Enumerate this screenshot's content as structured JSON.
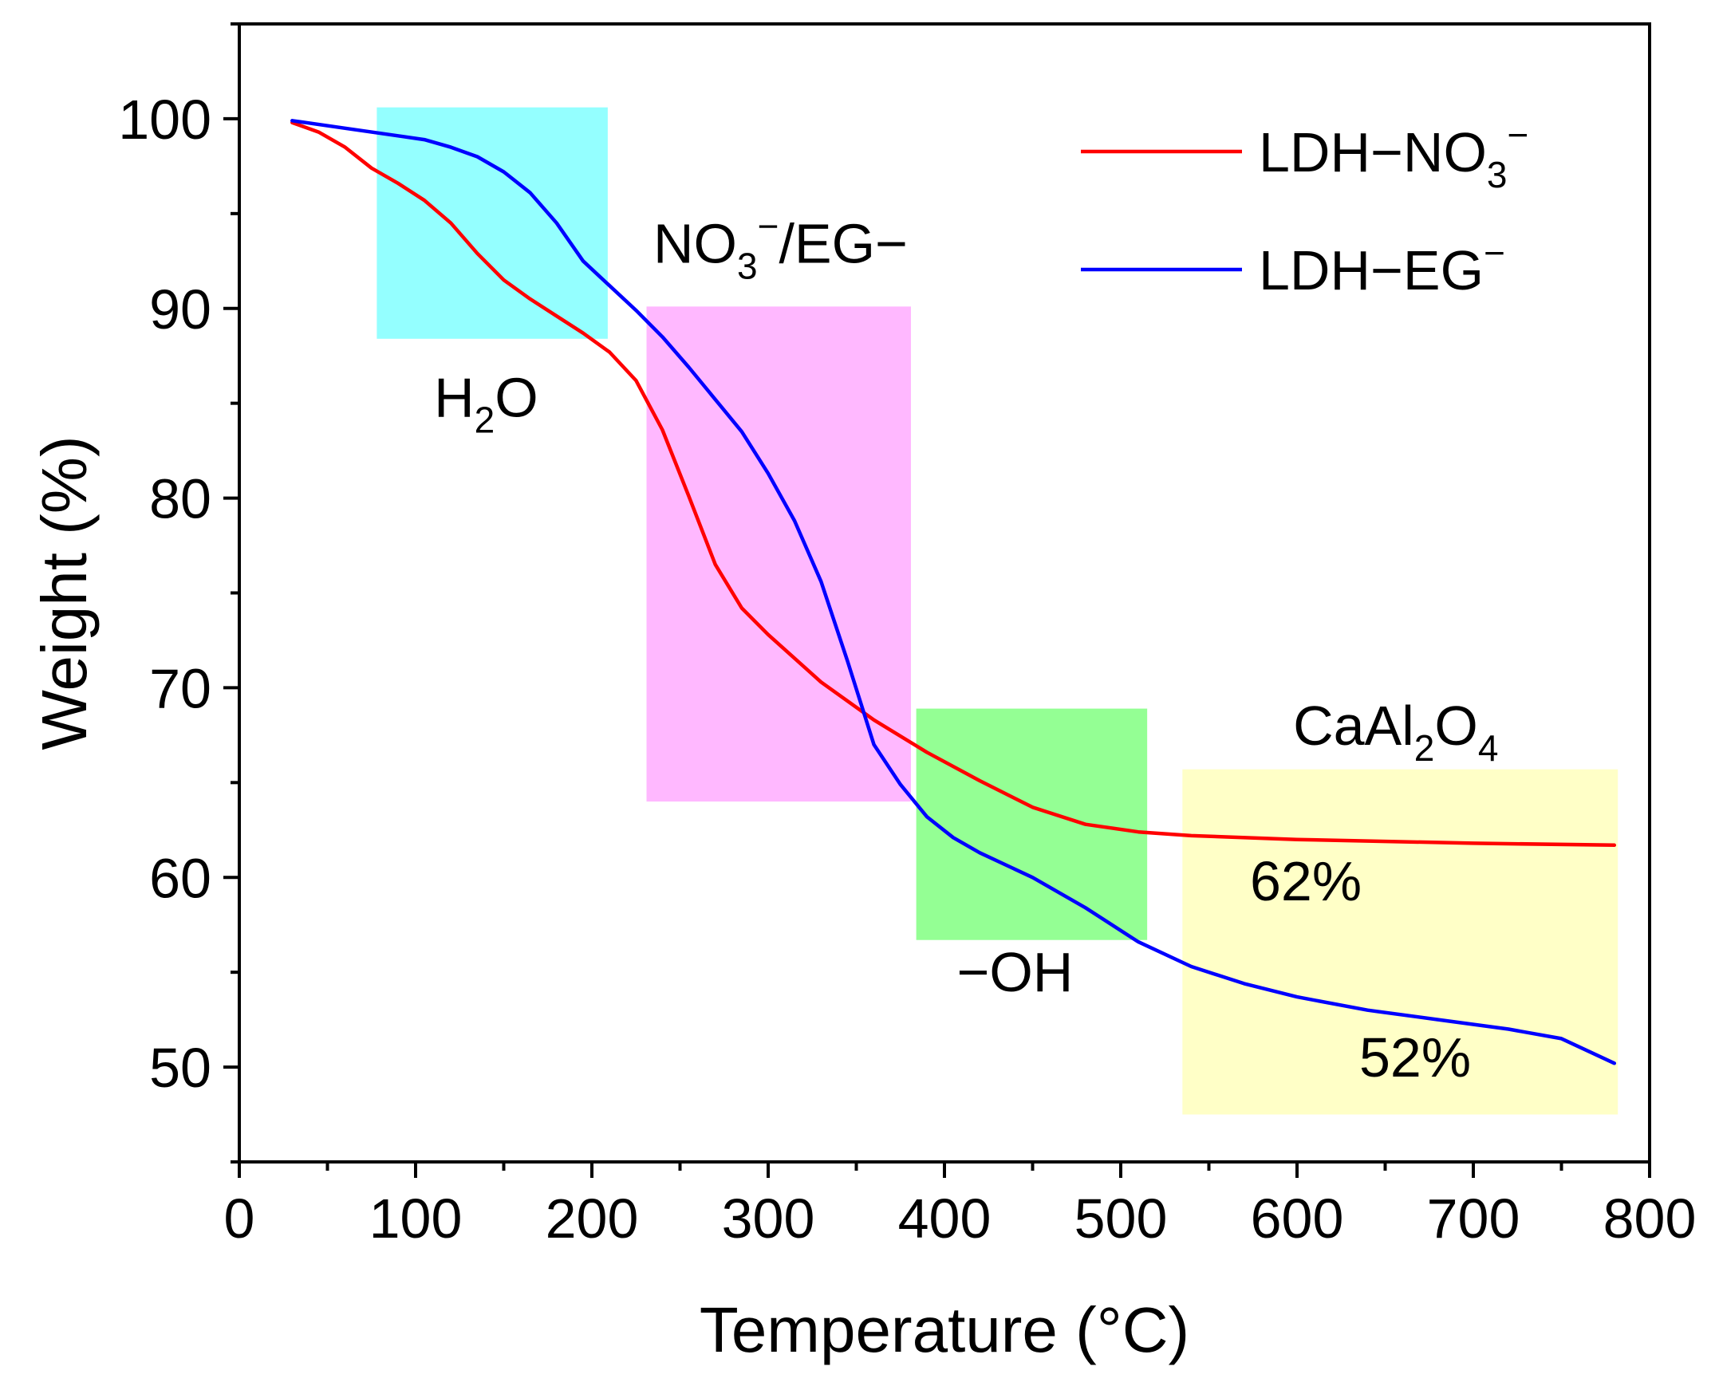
{
  "chart_data": {
    "type": "line",
    "xlabel": "Temperature (°C)",
    "ylabel": "Weight (%)",
    "xlim": [
      0,
      800
    ],
    "ylim": [
      45,
      105
    ],
    "x_ticks": [
      0,
      100,
      200,
      300,
      400,
      500,
      600,
      700,
      800
    ],
    "y_ticks": [
      50,
      60,
      70,
      80,
      90,
      100
    ],
    "legend_position": "top-right",
    "series": [
      {
        "name_main": "LDH−NO",
        "name_sub": "3",
        "name_sup": "−",
        "color": "#ff0000",
        "x": [
          30,
          45,
          60,
          75,
          90,
          105,
          120,
          135,
          150,
          165,
          180,
          195,
          210,
          225,
          240,
          255,
          270,
          285,
          300,
          330,
          360,
          390,
          420,
          450,
          480,
          510,
          540,
          600,
          700,
          780
        ],
        "y": [
          99.8,
          99.3,
          98.5,
          97.4,
          96.6,
          95.7,
          94.5,
          92.9,
          91.5,
          90.5,
          89.6,
          88.7,
          87.7,
          86.2,
          83.6,
          80.1,
          76.5,
          74.2,
          72.8,
          70.3,
          68.3,
          66.6,
          65.1,
          63.7,
          62.8,
          62.4,
          62.2,
          62.0,
          61.8,
          61.7
        ]
      },
      {
        "name_main": "LDH−EG",
        "name_sub": "",
        "name_sup": "−",
        "color": "#0000ff",
        "x": [
          30,
          60,
          90,
          105,
          120,
          135,
          150,
          165,
          180,
          195,
          210,
          225,
          240,
          255,
          270,
          285,
          300,
          315,
          330,
          345,
          360,
          375,
          390,
          405,
          420,
          450,
          480,
          510,
          540,
          570,
          600,
          640,
          680,
          720,
          750,
          780
        ],
        "y": [
          99.9,
          99.5,
          99.1,
          98.9,
          98.5,
          98.0,
          97.2,
          96.1,
          94.5,
          92.5,
          91.2,
          89.9,
          88.5,
          86.9,
          85.2,
          83.5,
          81.3,
          78.8,
          75.6,
          71.4,
          67.0,
          64.9,
          63.2,
          62.1,
          61.3,
          60.0,
          58.4,
          56.6,
          55.3,
          54.4,
          53.7,
          53.0,
          52.5,
          52.0,
          51.5,
          50.2
        ]
      }
    ],
    "regions": [
      {
        "x0": 78,
        "x1": 209,
        "y0": 88.4,
        "y1": 100.6,
        "color": "#00ffff",
        "opacity": 0.42
      },
      {
        "x0": 231,
        "x1": 381,
        "y0": 64.0,
        "y1": 90.1,
        "color": "#ff00ff",
        "opacity": 0.28
      },
      {
        "x0": 384,
        "x1": 515,
        "y0": 56.7,
        "y1": 68.9,
        "color": "#00ff00",
        "opacity": 0.42
      },
      {
        "x0": 535,
        "x1": 782,
        "y0": 47.5,
        "y1": 65.7,
        "color": "#ffff00",
        "opacity": 0.22
      }
    ],
    "annotations": [
      {
        "main": "H",
        "sub": "2",
        "tail": "O",
        "sup": "",
        "tail2": "",
        "x": 140,
        "y": 84.3,
        "anchor": "middle"
      },
      {
        "main": "NO",
        "sub": "3",
        "tail": "",
        "sup": "−",
        "tail2": "/EG−",
        "x": 307,
        "y": 92.4,
        "anchor": "middle"
      },
      {
        "main": "−OH",
        "sub": "",
        "tail": "",
        "sup": "",
        "tail2": "",
        "x": 440,
        "y": 54.0,
        "anchor": "middle"
      },
      {
        "main": "CaAl",
        "sub": "2",
        "tail": "O",
        "sup": "",
        "tail2": "",
        "sub2": "4",
        "x": 656,
        "y": 67.0,
        "anchor": "middle"
      },
      {
        "main": "62%",
        "sub": "",
        "tail": "",
        "sup": "",
        "tail2": "",
        "x": 605,
        "y": 58.8,
        "anchor": "middle"
      },
      {
        "main": "52%",
        "sub": "",
        "tail": "",
        "sup": "",
        "tail2": "",
        "x": 667,
        "y": 49.5,
        "anchor": "middle"
      }
    ]
  }
}
